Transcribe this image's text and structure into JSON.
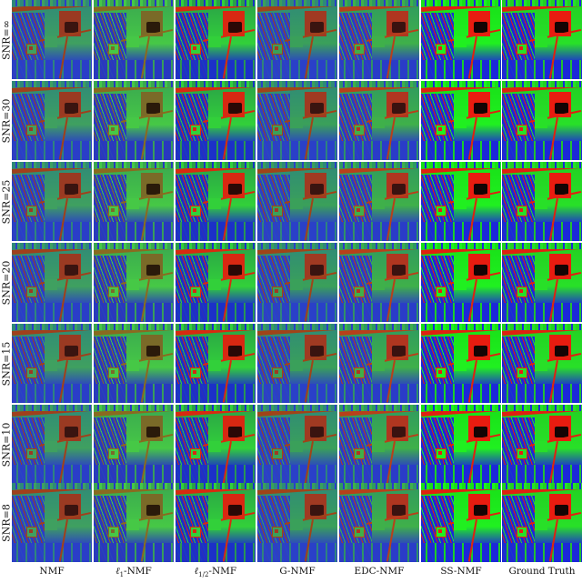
{
  "figure": {
    "rows": [
      {
        "label": "SNR=∞"
      },
      {
        "label": "SNR=30"
      },
      {
        "label": "SNR=25"
      },
      {
        "label": "SNR=20"
      },
      {
        "label": "SNR=15"
      },
      {
        "label": "SNR=10"
      },
      {
        "label": "SNR=8"
      }
    ],
    "columns": [
      {
        "label": "NMF",
        "prefix": "",
        "sub": "",
        "suffix": ""
      },
      {
        "label": "ℓ1-NMF",
        "prefix": "ℓ",
        "sub": "1",
        "suffix": "-NMF"
      },
      {
        "label": "ℓ1/2-NMF",
        "prefix": "ℓ",
        "sub": "1/2",
        "suffix": "-NMF"
      },
      {
        "label": "G-NMF",
        "prefix": "",
        "sub": "",
        "suffix": ""
      },
      {
        "label": "EDC-NMF",
        "prefix": "",
        "sub": "",
        "suffix": ""
      },
      {
        "label": "SS-NMF",
        "prefix": "",
        "sub": "",
        "suffix": ""
      },
      {
        "label": "Ground Truth",
        "prefix": "",
        "sub": "",
        "suffix": ""
      }
    ],
    "palettes": {
      "NMF": {
        "road": "#a0401c",
        "building": "#9a3a22",
        "roof": "#3a1410",
        "grass": "#3fa060",
        "urban": "#2a3ec8",
        "field": "#2f8a78"
      },
      "L1": {
        "road": "#8a6a20",
        "building": "#7a6a28",
        "roof": "#2a1a0a",
        "grass": "#46c846",
        "urban": "#2838c0",
        "field": "#3aa850"
      },
      "L12": {
        "road": "#d82a10",
        "building": "#d82812",
        "roof": "#2a0806",
        "grass": "#32d03a",
        "urban": "#1c30c8",
        "field": "#2aa048"
      },
      "GNMF": {
        "road": "#a04418",
        "building": "#a03a22",
        "roof": "#3a1410",
        "grass": "#3aa05a",
        "urban": "#2a40c8",
        "field": "#2f8a78"
      },
      "EDC": {
        "road": "#b8401a",
        "building": "#b03620",
        "roof": "#3a1210",
        "grass": "#3fb04a",
        "urban": "#2a3cc8",
        "field": "#2f9a60"
      },
      "SS": {
        "road": "#e02010",
        "building": "#e81c10",
        "roof": "#140404",
        "grass": "#20f020",
        "urban": "#1c28d8",
        "field": "#18e018"
      },
      "GT": {
        "road": "#e02010",
        "building": "#e81c10",
        "roof": "#140404",
        "grass": "#28e028",
        "urban": "#1c28d8",
        "field": "#22d022"
      }
    }
  }
}
